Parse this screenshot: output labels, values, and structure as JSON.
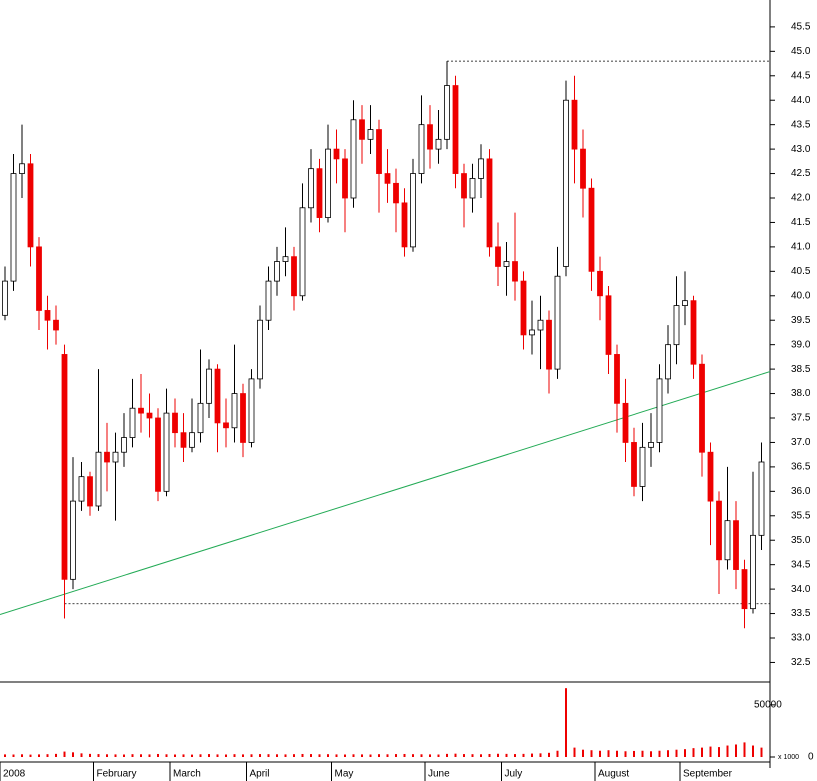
{
  "chart_data": {
    "type": "candlestick",
    "categories": [
      "2008",
      null,
      null,
      null,
      null,
      null,
      null,
      null,
      null,
      null,
      null,
      "February",
      null,
      null,
      null,
      null,
      null,
      null,
      null,
      null,
      "March",
      null,
      null,
      null,
      null,
      null,
      null,
      null,
      null,
      "April",
      null,
      null,
      null,
      null,
      null,
      null,
      null,
      null,
      null,
      "May",
      null,
      null,
      null,
      null,
      null,
      null,
      null,
      null,
      null,
      null,
      "June",
      null,
      null,
      null,
      null,
      null,
      null,
      null,
      null,
      "July",
      null,
      null,
      null,
      null,
      null,
      null,
      null,
      null,
      null,
      null,
      "August",
      null,
      null,
      null,
      null,
      null,
      null,
      null,
      null,
      null,
      "September",
      null,
      null,
      null,
      null,
      null,
      null,
      null,
      null,
      null
    ],
    "open": [
      39.6,
      40.3,
      42.5,
      42.7,
      41.0,
      39.7,
      39.5,
      38.8,
      34.2,
      35.8,
      36.3,
      35.7,
      36.8,
      36.6,
      36.8,
      37.1,
      37.7,
      37.6,
      37.5,
      36.0,
      37.6,
      37.2,
      36.9,
      37.2,
      37.8,
      38.5,
      37.4,
      37.3,
      38.0,
      37.0,
      38.3,
      39.5,
      40.3,
      40.7,
      40.8,
      40.0,
      41.8,
      42.6,
      41.6,
      43.0,
      42.8,
      42.0,
      43.6,
      43.2,
      43.4,
      42.5,
      42.3,
      41.9,
      41.0,
      42.5,
      43.5,
      43.0,
      43.2,
      44.3,
      42.5,
      42.0,
      42.4,
      42.8,
      41.0,
      40.6,
      40.7,
      40.3,
      39.2,
      39.3,
      39.5,
      38.5,
      40.6,
      44.0,
      43.0,
      42.2,
      40.5,
      40.0,
      38.8,
      37.8,
      37.0,
      36.1,
      36.9,
      37.0,
      38.3,
      39.0,
      39.8,
      39.9,
      38.6,
      36.8,
      35.8,
      34.6,
      35.4,
      34.4,
      33.6,
      35.1
    ],
    "high": [
      40.6,
      42.9,
      43.5,
      42.9,
      41.2,
      40.0,
      39.8,
      39.0,
      36.7,
      36.6,
      36.4,
      38.5,
      37.4,
      37.2,
      37.6,
      38.3,
      38.4,
      38.0,
      37.7,
      38.1,
      37.9,
      37.6,
      37.9,
      38.9,
      38.7,
      38.6,
      37.9,
      39.0,
      38.2,
      38.5,
      39.8,
      40.6,
      41.0,
      41.4,
      41.0,
      42.3,
      43.0,
      42.8,
      43.5,
      43.4,
      43.0,
      44.0,
      43.9,
      43.9,
      43.6,
      43.0,
      42.6,
      42.2,
      42.8,
      44.1,
      43.9,
      43.8,
      44.8,
      44.5,
      42.7,
      42.7,
      43.1,
      43.0,
      41.5,
      41.1,
      41.7,
      40.5,
      39.9,
      40.0,
      39.7,
      41.0,
      44.4,
      44.5,
      43.4,
      42.4,
      40.8,
      40.2,
      39.0,
      38.3,
      37.3,
      37.4,
      37.6,
      38.6,
      39.4,
      40.4,
      40.5,
      40.0,
      38.8,
      37.0,
      36.0,
      36.5,
      35.8,
      34.6,
      36.4,
      37.0
    ],
    "low": [
      39.5,
      40.1,
      42.0,
      40.6,
      39.3,
      38.9,
      39.0,
      33.4,
      34.0,
      35.6,
      35.5,
      35.6,
      36.0,
      35.4,
      36.5,
      36.9,
      37.2,
      37.1,
      35.8,
      35.9,
      36.9,
      36.6,
      36.8,
      37.0,
      37.5,
      36.8,
      36.9,
      37.0,
      36.7,
      36.9,
      38.1,
      39.3,
      40.0,
      40.4,
      39.7,
      39.9,
      41.5,
      41.3,
      41.5,
      42.3,
      41.3,
      41.8,
      42.7,
      42.9,
      41.7,
      41.9,
      41.3,
      40.8,
      40.9,
      42.3,
      42.6,
      42.7,
      43.0,
      42.2,
      41.4,
      41.7,
      42.0,
      40.8,
      40.2,
      40.0,
      39.9,
      38.9,
      38.8,
      38.5,
      38.0,
      38.3,
      40.4,
      42.3,
      41.6,
      40.1,
      39.5,
      38.4,
      37.2,
      36.6,
      35.9,
      35.8,
      36.5,
      36.8,
      38.0,
      38.6,
      39.4,
      38.3,
      36.3,
      34.9,
      33.9,
      34.4,
      34.0,
      33.2,
      33.5,
      34.8
    ],
    "close": [
      40.3,
      42.5,
      42.7,
      41.0,
      39.7,
      39.5,
      39.3,
      34.2,
      35.8,
      36.3,
      35.7,
      36.8,
      36.6,
      36.8,
      37.1,
      37.7,
      37.6,
      37.5,
      36.0,
      37.6,
      37.2,
      36.9,
      37.2,
      37.8,
      38.5,
      37.4,
      37.3,
      38.0,
      37.0,
      38.3,
      39.5,
      40.3,
      40.7,
      40.8,
      40.0,
      41.8,
      42.6,
      41.6,
      43.0,
      42.8,
      42.0,
      43.6,
      43.2,
      43.4,
      42.5,
      42.3,
      41.9,
      41.0,
      42.5,
      43.5,
      43.0,
      43.2,
      44.3,
      42.5,
      42.0,
      42.4,
      42.8,
      41.0,
      40.6,
      40.7,
      40.3,
      39.2,
      39.3,
      39.5,
      38.5,
      40.4,
      44.0,
      43.0,
      42.2,
      40.5,
      40.0,
      38.8,
      37.8,
      37.0,
      36.1,
      36.9,
      37.0,
      38.3,
      39.0,
      39.8,
      39.9,
      38.6,
      36.8,
      35.8,
      34.6,
      35.4,
      34.4,
      33.6,
      35.1,
      36.6
    ],
    "volume": [
      2500,
      2400,
      2600,
      2300,
      2500,
      2700,
      3000,
      5200,
      4500,
      3500,
      3000,
      2800,
      2600,
      2500,
      2400,
      2700,
      2600,
      2500,
      2900,
      2600,
      2400,
      2500,
      2300,
      2600,
      2800,
      2500,
      2400,
      2700,
      2500,
      2600,
      2800,
      2700,
      2600,
      2500,
      2700,
      2900,
      2800,
      2600,
      2700,
      2500,
      2400,
      2600,
      2500,
      2400,
      2700,
      2600,
      2800,
      2900,
      2700,
      2600,
      2500,
      2400,
      3000,
      3200,
      2800,
      2700,
      2600,
      2900,
      3100,
      3000,
      2800,
      3000,
      3300,
      3500,
      4000,
      6000,
      66000,
      9000,
      7000,
      6500,
      6000,
      6500,
      6000,
      5500,
      5800,
      6000,
      5500,
      6000,
      6500,
      7000,
      7500,
      8500,
      9000,
      10000,
      9500,
      11000,
      12000,
      14000,
      11000,
      9000
    ],
    "ylim": [
      32.1,
      46.05
    ],
    "yticks": [
      32.5,
      {
        "value": 33,
        "label": "33.0"
      },
      33.5,
      {
        "value": 34,
        "label": "34.0"
      },
      34.5,
      {
        "value": 35,
        "label": "35.0"
      },
      35.5,
      {
        "value": 36,
        "label": "36.0"
      },
      36.5,
      {
        "value": 37,
        "label": "37.0"
      },
      37.5,
      {
        "value": 38,
        "label": "38.0"
      },
      38.5,
      {
        "value": 39,
        "label": "39.0"
      },
      39.5,
      {
        "value": 40,
        "label": "40.0"
      },
      40.5,
      {
        "value": 41,
        "label": "41.0"
      },
      41.5,
      {
        "value": 42,
        "label": "42.0"
      },
      42.5,
      {
        "value": 43,
        "label": "43.0"
      },
      43.5,
      {
        "value": 44,
        "label": "44.0"
      },
      44.5,
      {
        "value": 45,
        "label": "45.0"
      },
      45.5
    ],
    "vlim": [
      0,
      70000
    ],
    "vticks": [
      0,
      50000
    ],
    "volume_unit": "x 1000",
    "reference_lines": [
      44.8,
      33.7
    ],
    "trendline": [
      33.48,
      38.45
    ],
    "up_color": "#ffffff",
    "down_color": "#ee0000",
    "trend_color": "#22aa55"
  }
}
